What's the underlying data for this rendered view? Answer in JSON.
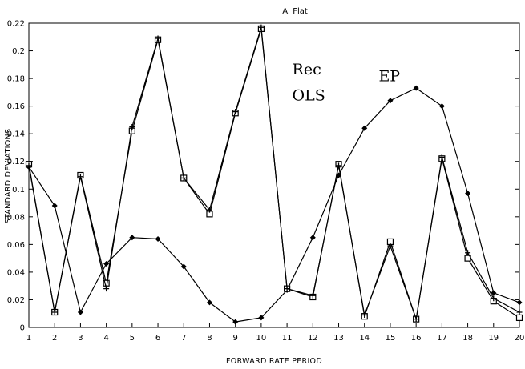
{
  "chart_data": {
    "type": "line",
    "title": "A. Flat",
    "xlabel": "FORWARD RATE PERIOD",
    "ylabel": "STANDARD DEVIATIONS",
    "xlim": [
      1,
      20
    ],
    "ylim": [
      0,
      0.22
    ],
    "x_ticks": [
      "1",
      "2",
      "3",
      "4",
      "5",
      "6",
      "7",
      "8",
      "9",
      "10",
      "11",
      "12",
      "13",
      "14",
      "15",
      "16",
      "17",
      "18",
      "19",
      "20"
    ],
    "y_ticks": [
      "0",
      "0.02",
      "0.04",
      "0.06",
      "0.08",
      "0.1",
      "0.12",
      "0.14",
      "0.16",
      "0.18",
      "0.2",
      "0.22"
    ],
    "grid": false,
    "x": [
      1,
      2,
      3,
      4,
      5,
      6,
      7,
      8,
      9,
      10,
      11,
      12,
      13,
      14,
      15,
      16,
      17,
      18,
      19,
      20
    ],
    "series": [
      {
        "marker": "diamond",
        "values": [
          0.116,
          0.088,
          0.011,
          0.046,
          0.065,
          0.064,
          0.044,
          0.018,
          0.004,
          0.007,
          0.027,
          0.065,
          0.11,
          0.144,
          0.164,
          0.173,
          0.16,
          0.097,
          0.025,
          0.018
        ]
      },
      {
        "marker": "square",
        "values": [
          0.118,
          0.011,
          0.11,
          0.032,
          0.142,
          0.208,
          0.108,
          0.082,
          0.155,
          0.216,
          0.028,
          0.022,
          0.118,
          0.008,
          0.062,
          0.006,
          0.122,
          0.05,
          0.019,
          0.007
        ]
      },
      {
        "marker": "plus",
        "values": [
          0.117,
          0.011,
          0.109,
          0.028,
          0.145,
          0.209,
          0.108,
          0.085,
          0.156,
          0.217,
          0.028,
          0.023,
          0.117,
          0.009,
          0.059,
          0.006,
          0.123,
          0.054,
          0.021,
          0.011
        ]
      }
    ],
    "annotations": [
      {
        "text": "Rec",
        "x": 11.2,
        "y": 0.183
      },
      {
        "text": "OLS",
        "x": 11.2,
        "y": 0.164
      },
      {
        "text": "EP",
        "x": 14.55,
        "y": 0.178
      }
    ]
  }
}
